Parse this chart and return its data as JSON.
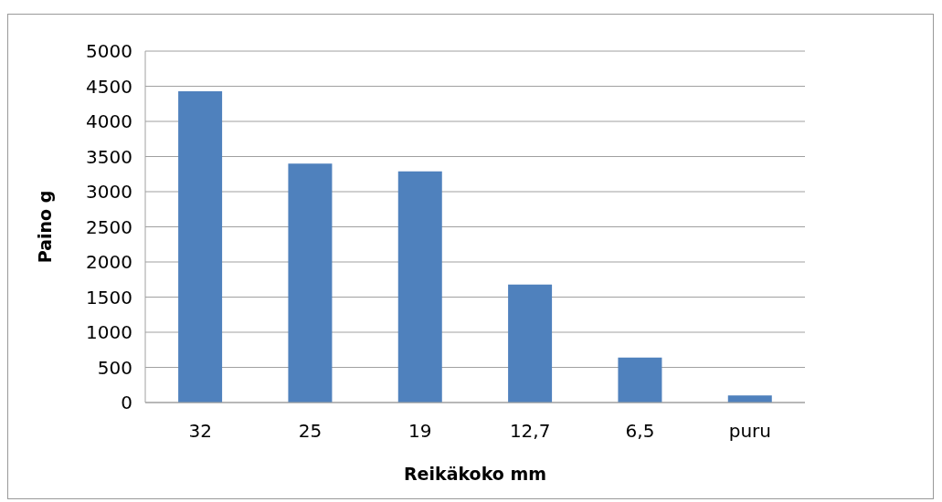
{
  "chart_data": {
    "type": "bar",
    "xlabel": "Reikäkoko mm",
    "ylabel": "Paino g",
    "categories": [
      "32",
      "25",
      "19",
      "12,7",
      "6,5",
      "puru"
    ],
    "values": [
      4430,
      3400,
      3290,
      1680,
      640,
      100
    ],
    "color": "#4f81bd",
    "ylim": [
      0,
      5000
    ],
    "yticks": [
      0,
      500,
      1000,
      1500,
      2000,
      2500,
      3000,
      3500,
      4000,
      4500,
      5000
    ],
    "grid": "y"
  }
}
